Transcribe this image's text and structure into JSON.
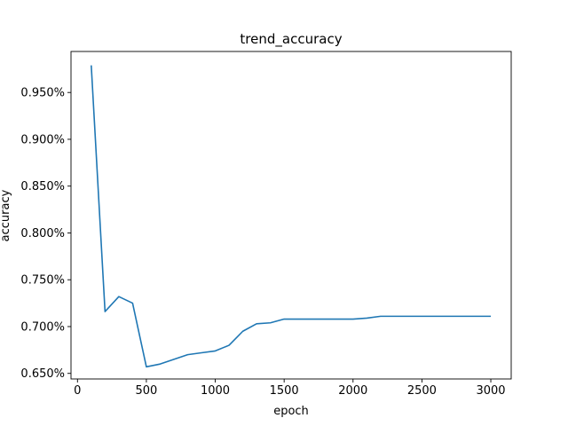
{
  "chart_data": {
    "type": "line",
    "title": "trend_accuracy",
    "xlabel": "epoch",
    "ylabel": "accuracy",
    "xlim": [
      -47,
      3148
    ],
    "ylim": [
      0.0064405,
      0.009938
    ],
    "xticks": [
      0,
      500,
      1000,
      1500,
      2000,
      2500,
      3000
    ],
    "xtick_labels": [
      "0",
      "500",
      "1000",
      "1500",
      "2000",
      "2500",
      "3000"
    ],
    "yticks": [
      0.0065,
      0.007,
      0.0075,
      0.008,
      0.0085,
      0.009,
      0.0095
    ],
    "ytick_labels": [
      "0.650%",
      "0.700%",
      "0.750%",
      "0.800%",
      "0.850%",
      "0.900%",
      "0.950%"
    ],
    "grid": false,
    "line_color": "#1f77b4",
    "series": [
      {
        "x": [
          100,
          200,
          300,
          400,
          500,
          600,
          700,
          800,
          900,
          1000,
          1100,
          1200,
          1300,
          1400,
          1500,
          1600,
          1700,
          1800,
          1900,
          2000,
          2100,
          2200,
          2300,
          2400,
          2500,
          2600,
          2700,
          2800,
          2900,
          3000
        ],
        "values": [
          0.00979,
          0.00716,
          0.00732,
          0.00725,
          0.00657,
          0.0066,
          0.00665,
          0.0067,
          0.00672,
          0.00674,
          0.0068,
          0.00695,
          0.00703,
          0.00704,
          0.00708,
          0.00708,
          0.00708,
          0.00708,
          0.00708,
          0.00708,
          0.00709,
          0.00711,
          0.00711,
          0.00711,
          0.00711,
          0.00711,
          0.00711,
          0.00711,
          0.00711,
          0.00711
        ]
      }
    ]
  }
}
